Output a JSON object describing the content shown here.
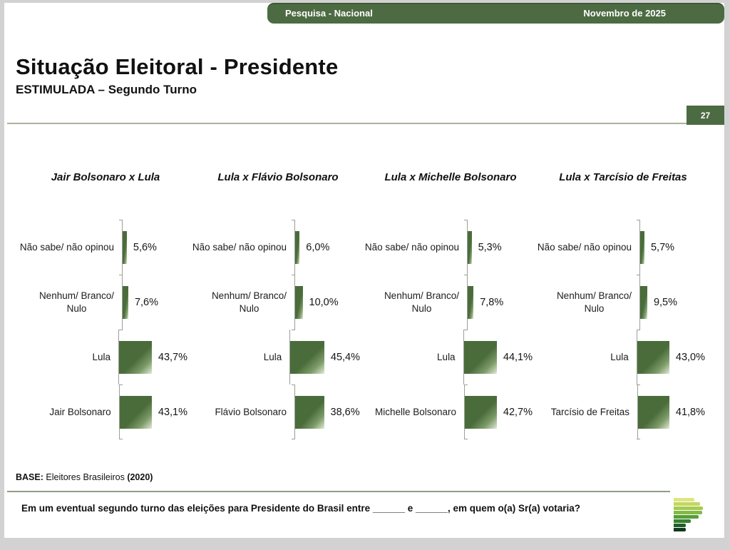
{
  "header": {
    "left_label": "Pesquisa - Nacional",
    "right_label": "Novembro de 2025"
  },
  "title": "Situação Eleitoral - Presidente",
  "subtitle": "ESTIMULADA – Segundo Turno",
  "page_number": "27",
  "chart_data": {
    "type": "bar",
    "orientation": "horizontal",
    "unit": "%",
    "value_range": [
      0,
      50
    ],
    "grid": false,
    "legend": "none",
    "charts": [
      {
        "title": "Jair Bolsonaro x Lula",
        "rows": [
          {
            "label": "Não sabe/ não opinou",
            "value": 5.6,
            "display": "5,6%"
          },
          {
            "label": "Nenhum/ Branco/\nNulo",
            "value": 7.6,
            "display": "7,6%"
          },
          {
            "label": "Lula",
            "value": 43.7,
            "display": "43,7%"
          },
          {
            "label": "Jair Bolsonaro",
            "value": 43.1,
            "display": "43,1%"
          }
        ]
      },
      {
        "title": "Lula x Flávio Bolsonaro",
        "rows": [
          {
            "label": "Não sabe/ não opinou",
            "value": 6.0,
            "display": "6,0%"
          },
          {
            "label": "Nenhum/ Branco/\nNulo",
            "value": 10.0,
            "display": "10,0%"
          },
          {
            "label": "Lula",
            "value": 45.4,
            "display": "45,4%"
          },
          {
            "label": "Flávio Bolsonaro",
            "value": 38.6,
            "display": "38,6%"
          }
        ]
      },
      {
        "title": "Lula x Michelle Bolsonaro",
        "rows": [
          {
            "label": "Não sabe/ não opinou",
            "value": 5.3,
            "display": "5,3%"
          },
          {
            "label": "Nenhum/ Branco/\nNulo",
            "value": 7.8,
            "display": "7,8%"
          },
          {
            "label": "Lula",
            "value": 44.1,
            "display": "44,1%"
          },
          {
            "label": "Michelle Bolsonaro",
            "value": 42.7,
            "display": "42,7%"
          }
        ]
      },
      {
        "title": "Lula x Tarcísio de Freitas",
        "rows": [
          {
            "label": "Não sabe/ não opinou",
            "value": 5.7,
            "display": "5,7%"
          },
          {
            "label": "Nenhum/ Branco/\nNulo",
            "value": 9.5,
            "display": "9,5%"
          },
          {
            "label": "Lula",
            "value": 43.0,
            "display": "43,0%"
          },
          {
            "label": "Tarcísio de Freitas",
            "value": 41.8,
            "display": "41,8%"
          }
        ]
      }
    ]
  },
  "base_note": {
    "label": "BASE:",
    "text": " Eleitores Brasileiros ",
    "year": "(2020)"
  },
  "question": "Em um eventual segundo turno das eleições para Presidente do Brasil entre ______ e ______, em quem o(a) Sr(a) votaria?",
  "colors": {
    "header_green": "#4d6b42",
    "bar_green": "#4a6c3b",
    "axis_grey": "#9aa095"
  },
  "logo": {
    "name": "striped-p-logo",
    "stripe_colors": [
      "#dde681",
      "#c3d75f",
      "#a6cb52",
      "#83b944",
      "#579f39",
      "#39822f",
      "#206028",
      "#12391b"
    ],
    "stripe_widths": [
      29,
      37,
      41,
      40,
      35,
      24,
      17,
      17
    ]
  }
}
